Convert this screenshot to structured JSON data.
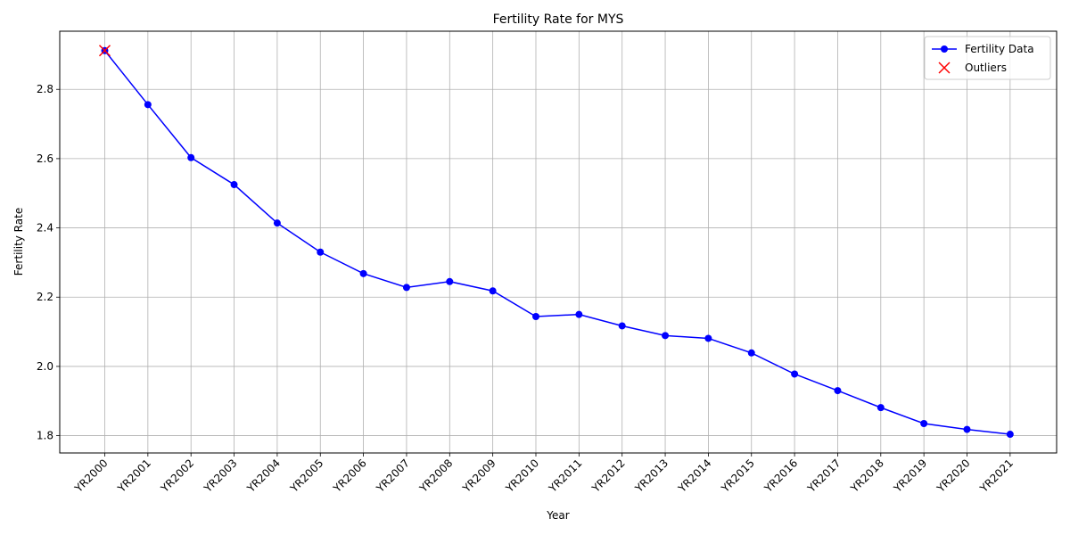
{
  "chart_data": {
    "type": "line",
    "title": "Fertility Rate for MYS",
    "xlabel": "Year",
    "ylabel": "Fertility Rate",
    "categories": [
      "YR2000",
      "YR2001",
      "YR2002",
      "YR2003",
      "YR2004",
      "YR2005",
      "YR2006",
      "YR2007",
      "YR2008",
      "YR2009",
      "YR2010",
      "YR2011",
      "YR2012",
      "YR2013",
      "YR2014",
      "YR2015",
      "YR2016",
      "YR2017",
      "YR2018",
      "YR2019",
      "YR2020",
      "YR2021"
    ],
    "series": [
      {
        "name": "Fertility Data",
        "color": "#0000ff",
        "marker": "circle",
        "values": [
          2.912,
          2.756,
          2.603,
          2.525,
          2.414,
          2.33,
          2.268,
          2.228,
          2.245,
          2.218,
          2.144,
          2.15,
          2.117,
          2.089,
          2.081,
          2.039,
          1.978,
          1.93,
          1.881,
          1.835,
          1.818,
          1.804
        ]
      }
    ],
    "outliers": {
      "name": "Outliers",
      "color": "#ff0000",
      "marker": "x",
      "points": [
        {
          "x": "YR2000",
          "y": 2.912
        }
      ]
    },
    "yticks": [
      1.8,
      2.0,
      2.2,
      2.4,
      2.6,
      2.8
    ],
    "ylim": [
      1.75,
      2.968
    ],
    "grid": true,
    "legend": "top-right"
  }
}
